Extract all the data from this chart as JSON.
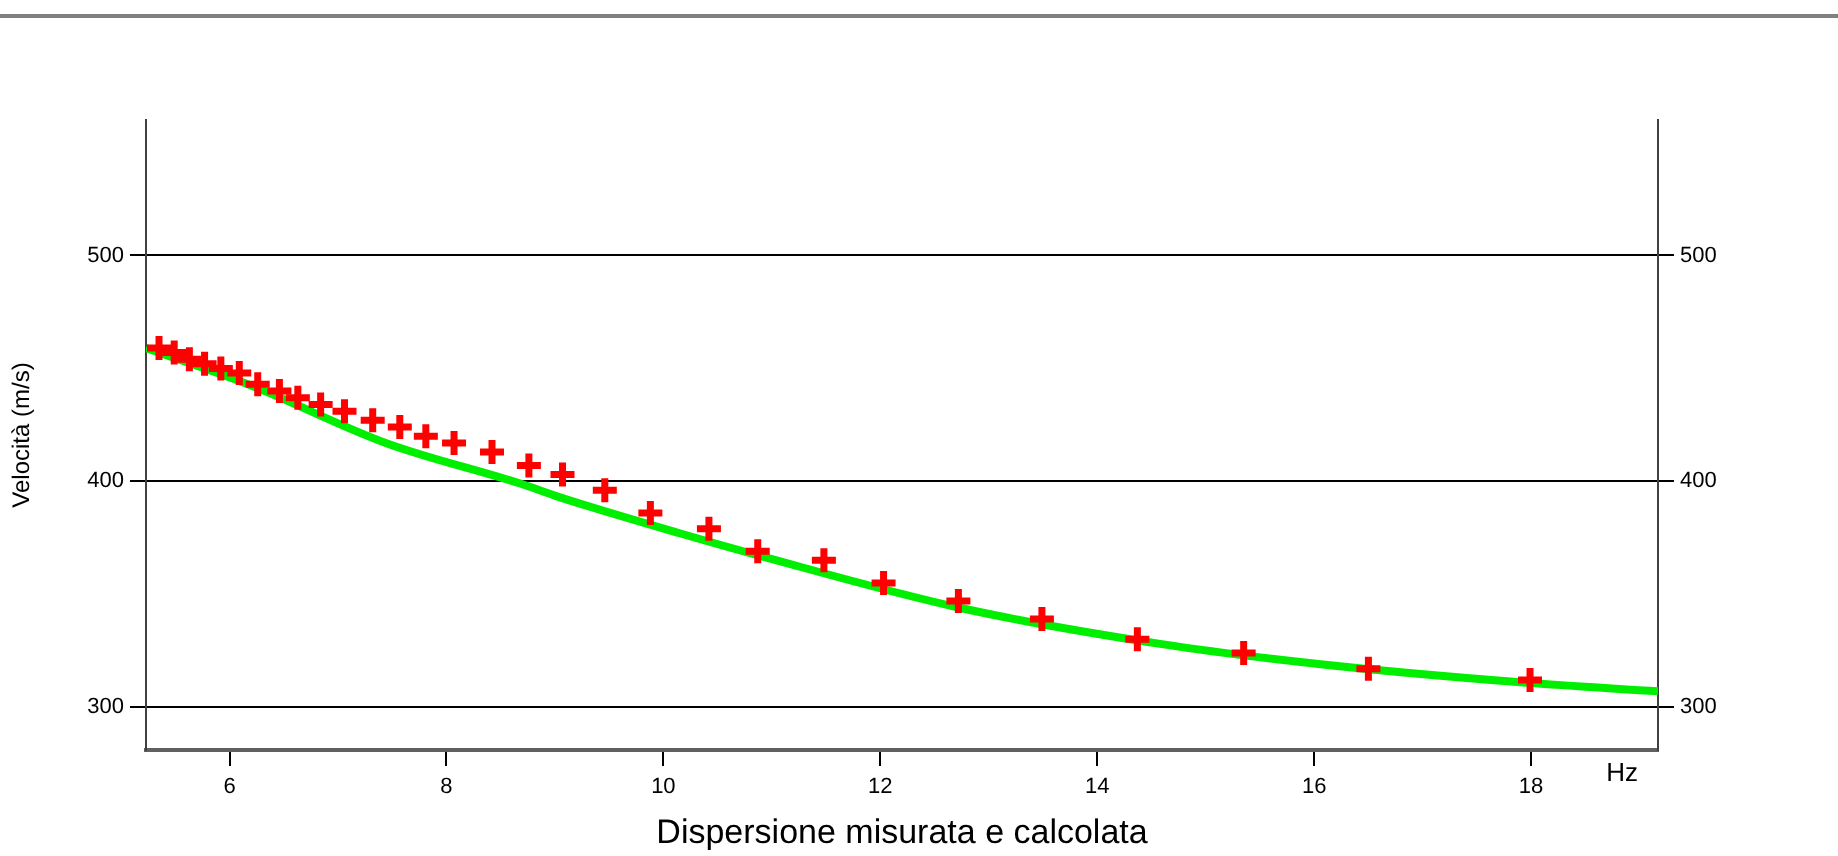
{
  "chart_data": {
    "type": "scatter",
    "title": "Dispersione misurata e calcolata",
    "xlabel": "Hz",
    "ylabel": "Velocità (m/s)",
    "xlim": [
      5.23,
      19.17
    ],
    "xticks": [
      6,
      8,
      10,
      12,
      14,
      16,
      18
    ],
    "ylim": [
      281,
      560
    ],
    "yticks": [
      300,
      400,
      500
    ],
    "y2lim": [
      281,
      560
    ],
    "y2ticks": [
      300,
      400,
      500
    ],
    "grid": "y",
    "legend": false,
    "marker": "cross",
    "series": [
      {
        "color": "#ff0000",
        "x": [
          5.35,
          5.49,
          5.63,
          5.77,
          5.92,
          6.09,
          6.26,
          6.46,
          6.63,
          6.84,
          7.06,
          7.32,
          7.57,
          7.81,
          8.07,
          8.42,
          8.76,
          9.07,
          9.46,
          9.88,
          10.42,
          10.87,
          11.48,
          12.03,
          12.72,
          13.49,
          14.37,
          15.35,
          16.5,
          17.99
        ],
        "values": [
          459,
          457,
          454,
          452,
          450,
          448,
          443,
          440,
          437,
          434,
          431,
          427,
          424,
          420,
          417,
          413,
          407,
          403,
          396,
          386,
          379,
          369,
          365,
          355,
          347,
          339,
          330,
          324,
          317,
          312
        ]
      },
      {
        "type": "line",
        "color": "#00ee00",
        "marker": "none",
        "x": [
          5.23,
          6.22,
          7.44,
          8.68,
          9.04,
          10.15,
          10.89,
          12.73,
          14.58,
          16.06,
          17.9,
          19.17
        ],
        "values": [
          459,
          442,
          417,
          399,
          393,
          377,
          367,
          344,
          328,
          319,
          311,
          307
        ]
      }
    ]
  }
}
